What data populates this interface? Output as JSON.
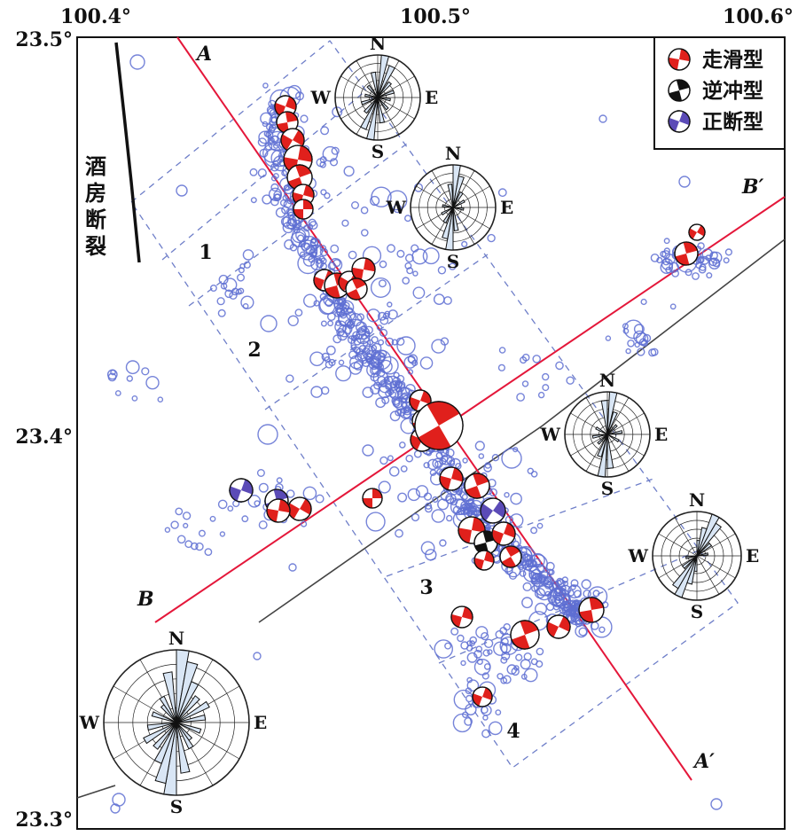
{
  "axes": {
    "x_ticks": [
      "100.4°",
      "100.5°",
      "100.6°"
    ],
    "y_ticks": [
      "23.5°",
      "23.4°",
      "23.3°"
    ]
  },
  "fault": {
    "name": "酒房断裂"
  },
  "profiles": {
    "A": "A",
    "A_prime": "A′",
    "B": "B",
    "B_prime": "B′"
  },
  "zones": [
    "1",
    "2",
    "3",
    "4"
  ],
  "legend": {
    "items": [
      {
        "label": "走滑型",
        "color": "#e0201c",
        "type": "strike-slip"
      },
      {
        "label": "逆冲型",
        "color": "#111111",
        "type": "thrust"
      },
      {
        "label": "正断型",
        "color": "#5b4bb7",
        "type": "normal"
      }
    ]
  },
  "rose": {
    "n": "N",
    "s": "S",
    "e": "E",
    "w": "W"
  },
  "colors": {
    "profile_line": "#e4173a",
    "event_circle": "#5e6fd2",
    "grid_dash": "#6f7fc9",
    "strike_slip": "#e0201c",
    "normal": "#5b4bb7",
    "thrust": "#111111"
  }
}
